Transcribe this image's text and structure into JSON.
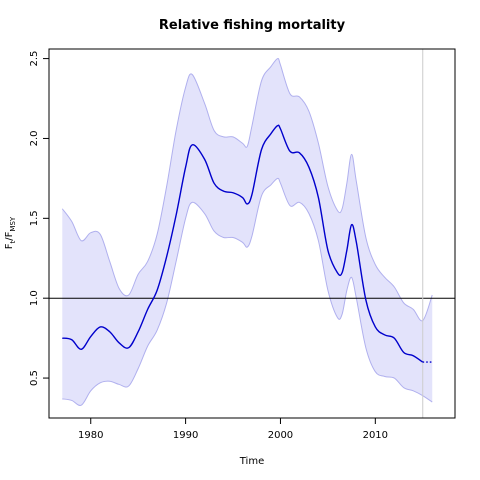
{
  "chart_data": {
    "type": "line",
    "title": "Relative fishing mortality",
    "xlabel": "Time",
    "ylabel": {
      "main": "F",
      "sub1": "t",
      "sep": "/F",
      "sub2": "MSY"
    },
    "xlim": [
      1975.6,
      2018.4
    ],
    "ylim": [
      0.25,
      2.56
    ],
    "xticks": [
      1980,
      1990,
      2000,
      2010
    ],
    "yticks": [
      0.5,
      1.0,
      1.5,
      2.0,
      2.5
    ],
    "ytick_labels": [
      "0.5",
      "1.0",
      "1.5",
      "2.0",
      "2.5"
    ],
    "reference_hline": 1.0,
    "reference_vline": 2015,
    "colors": {
      "line": "#0000cc",
      "band_fill": "#e3e3fb",
      "band_stroke": "#b0b0ee",
      "vline": "#cccccc"
    },
    "series": [
      {
        "name": "",
        "x": [
          1977,
          1978,
          1979,
          1980,
          1981,
          1982,
          1983,
          1984,
          1985,
          1986,
          1987,
          1988,
          1989,
          1990,
          1990.7,
          1992,
          1993,
          1994,
          1995,
          1996,
          1996.5,
          1997,
          1998,
          1999,
          1999.7,
          2000,
          2001,
          2002,
          2003,
          2004,
          2005,
          2006,
          2006.5,
          2007,
          2007.5,
          2008,
          2009,
          2010,
          2011,
          2012,
          2013,
          2014,
          2015
        ],
        "y": [
          0.75,
          0.74,
          0.68,
          0.76,
          0.82,
          0.79,
          0.72,
          0.69,
          0.79,
          0.93,
          1.05,
          1.26,
          1.52,
          1.82,
          1.96,
          1.87,
          1.72,
          1.67,
          1.66,
          1.63,
          1.59,
          1.65,
          1.93,
          2.03,
          2.08,
          2.06,
          1.92,
          1.91,
          1.82,
          1.63,
          1.3,
          1.16,
          1.16,
          1.3,
          1.46,
          1.35,
          0.99,
          0.82,
          0.77,
          0.75,
          0.66,
          0.64,
          0.6
        ]
      },
      {
        "name": "",
        "style": "dotted",
        "x": [
          2015,
          2016
        ],
        "y": [
          0.6,
          0.6
        ]
      }
    ],
    "band": {
      "x": [
        1977,
        1978,
        1979,
        1980,
        1981,
        1982,
        1983,
        1984,
        1985,
        1986,
        1987,
        1988,
        1989,
        1990,
        1990.7,
        1992,
        1993,
        1994,
        1995,
        1996,
        1996.5,
        1997,
        1998,
        1999,
        1999.7,
        2000,
        2001,
        2002,
        2003,
        2004,
        2005,
        2006,
        2006.5,
        2007,
        2007.5,
        2008,
        2009,
        2010,
        2011,
        2012,
        2013,
        2014,
        2015,
        2016
      ],
      "upper": [
        1.56,
        1.48,
        1.36,
        1.41,
        1.4,
        1.23,
        1.06,
        1.02,
        1.15,
        1.23,
        1.4,
        1.7,
        2.05,
        2.32,
        2.4,
        2.22,
        2.05,
        2.01,
        2.01,
        1.97,
        1.95,
        2.08,
        2.36,
        2.45,
        2.5,
        2.46,
        2.28,
        2.26,
        2.17,
        1.97,
        1.7,
        1.55,
        1.56,
        1.72,
        1.9,
        1.73,
        1.38,
        1.21,
        1.13,
        1.07,
        0.97,
        0.93,
        0.86,
        1.02
      ],
      "lower": [
        0.37,
        0.36,
        0.33,
        0.42,
        0.47,
        0.48,
        0.46,
        0.45,
        0.56,
        0.7,
        0.8,
        0.97,
        1.23,
        1.5,
        1.6,
        1.53,
        1.42,
        1.38,
        1.38,
        1.35,
        1.32,
        1.39,
        1.64,
        1.71,
        1.75,
        1.72,
        1.58,
        1.6,
        1.53,
        1.36,
        1.05,
        0.88,
        0.9,
        1.05,
        1.13,
        1.0,
        0.69,
        0.54,
        0.51,
        0.5,
        0.44,
        0.42,
        0.39,
        0.35
      ]
    }
  }
}
